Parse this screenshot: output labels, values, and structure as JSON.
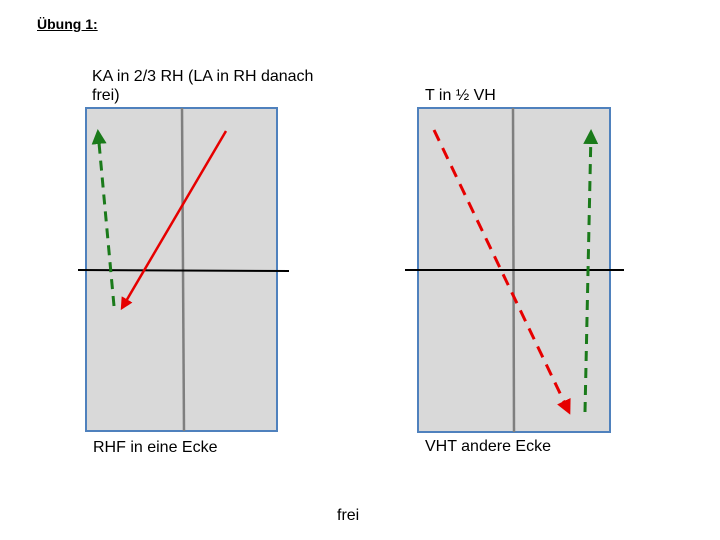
{
  "title": "Übung 1:",
  "left_panel": {
    "top_label": "KA in 2/3 RH (LA in RH danach frei)",
    "bottom_label": "RHF in eine Ecke"
  },
  "right_panel": {
    "top_label": "T in ½ VH",
    "bottom_label": "VHT andere Ecke"
  },
  "footer": "frei",
  "colors": {
    "arena_fill": "#d9d9d9",
    "arena_border": "#4f81bd",
    "center_line": "#7f7f7f",
    "cross_line": "#000000",
    "red_arrow": "#e60000",
    "green_arrow": "#1a7a1a"
  }
}
